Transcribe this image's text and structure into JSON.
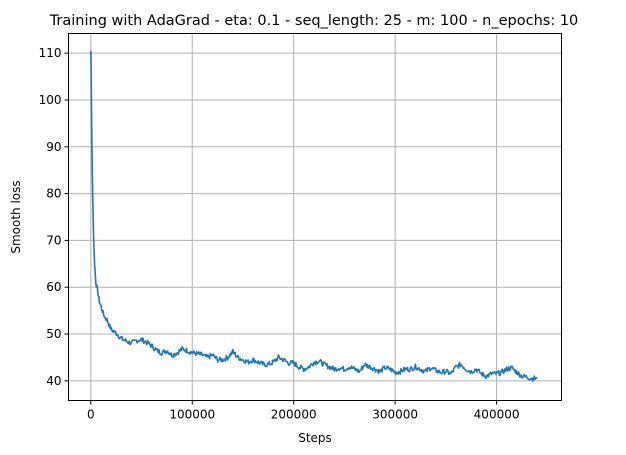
{
  "chart_data": {
    "type": "line",
    "title": "Training with AdaGrad - eta: 0.1 - seq_length: 25 - m: 100 - n_epochs: 10",
    "xlabel": "Steps",
    "ylabel": "Smooth loss",
    "xlim": [
      -22000,
      464000
    ],
    "ylim": [
      35.8,
      114.2
    ],
    "xticks": [
      0,
      100000,
      200000,
      300000,
      400000
    ],
    "xtick_labels": [
      "0",
      "100000",
      "200000",
      "300000",
      "400000"
    ],
    "yticks": [
      40,
      50,
      60,
      70,
      80,
      90,
      100,
      110
    ],
    "ytick_labels": [
      "40",
      "50",
      "60",
      "70",
      "80",
      "90",
      "100",
      "110"
    ],
    "grid": true,
    "line_color": "#1f77b4",
    "series": [
      {
        "x": [
          0,
          300,
          600,
          1000,
          1500,
          2000,
          2500,
          3000,
          3500,
          4000,
          5000,
          6000,
          7000,
          8000,
          9000,
          10000,
          12000,
          14000,
          16000,
          18000,
          20000,
          23000,
          26000,
          30000,
          35000,
          40000,
          45000,
          50000,
          55000,
          60000,
          65000,
          70000,
          75000,
          80000,
          85000,
          90000,
          95000,
          100000,
          105000,
          110000,
          115000,
          120000,
          125000,
          130000,
          135000,
          140000,
          145000,
          150000,
          155000,
          160000,
          165000,
          170000,
          175000,
          180000,
          185000,
          190000,
          195000,
          200000,
          205000,
          210000,
          215000,
          220000,
          225000,
          230000,
          235000,
          240000,
          245000,
          250000,
          255000,
          260000,
          265000,
          270000,
          275000,
          280000,
          285000,
          290000,
          295000,
          300000,
          305000,
          310000,
          315000,
          320000,
          325000,
          330000,
          335000,
          340000,
          345000,
          350000,
          355000,
          360000,
          365000,
          370000,
          375000,
          380000,
          385000,
          390000,
          395000,
          400000,
          405000,
          410000,
          415000,
          420000,
          425000,
          430000,
          435000,
          440000
        ],
        "values": [
          110.5,
          108.0,
          100.0,
          92.0,
          84.0,
          78.0,
          73.0,
          69.0,
          66.0,
          64.0,
          61.0,
          60.0,
          58.8,
          57.5,
          56.5,
          56.0,
          54.5,
          53.5,
          53.0,
          52.0,
          51.0,
          50.5,
          50.0,
          49.0,
          48.5,
          48.0,
          48.6,
          48.8,
          48.2,
          47.5,
          46.5,
          46.0,
          46.5,
          45.5,
          46.0,
          46.8,
          46.5,
          46.0,
          45.8,
          45.5,
          45.0,
          45.5,
          44.5,
          44.5,
          45.0,
          46.2,
          45.0,
          44.5,
          44.0,
          44.5,
          44.0,
          43.5,
          43.5,
          44.0,
          45.0,
          44.5,
          43.8,
          43.8,
          43.0,
          42.5,
          43.0,
          44.0,
          44.2,
          43.5,
          43.0,
          42.5,
          42.8,
          42.5,
          43.0,
          42.5,
          42.0,
          43.5,
          43.0,
          42.5,
          42.0,
          42.8,
          42.5,
          41.8,
          42.0,
          42.5,
          42.5,
          43.0,
          42.5,
          42.0,
          42.8,
          42.2,
          41.8,
          42.0,
          41.5,
          43.0,
          43.5,
          42.5,
          42.0,
          42.5,
          41.5,
          41.0,
          41.5,
          41.5,
          41.8,
          42.5,
          42.8,
          41.8,
          41.0,
          40.8,
          40.5,
          40.5
        ]
      }
    ]
  }
}
